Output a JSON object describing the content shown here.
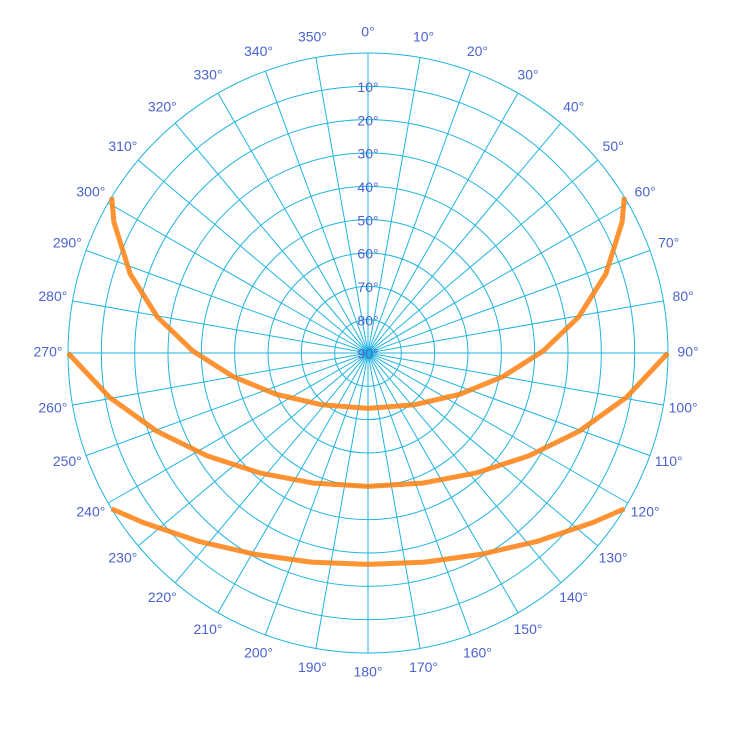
{
  "chart_data": {
    "type": "polar-line",
    "rlim": [
      90,
      0
    ],
    "rticks": [
      {
        "value": 10,
        "label": "10°"
      },
      {
        "value": 20,
        "label": "20°"
      },
      {
        "value": 30,
        "label": "30°"
      },
      {
        "value": 40,
        "label": "40°"
      },
      {
        "value": 50,
        "label": "50°"
      },
      {
        "value": 60,
        "label": "60°"
      },
      {
        "value": 70,
        "label": "70°"
      },
      {
        "value": 80,
        "label": "80°"
      },
      {
        "value": 90,
        "label": "90°"
      }
    ],
    "thetaticks": [
      {
        "value": 0,
        "label": "0°"
      },
      {
        "value": 10,
        "label": "10°"
      },
      {
        "value": 20,
        "label": "20°"
      },
      {
        "value": 30,
        "label": "30°"
      },
      {
        "value": 40,
        "label": "40°"
      },
      {
        "value": 50,
        "label": "50°"
      },
      {
        "value": 60,
        "label": "60°"
      },
      {
        "value": 70,
        "label": "70°"
      },
      {
        "value": 80,
        "label": "80°"
      },
      {
        "value": 90,
        "label": "90°"
      },
      {
        "value": 100,
        "label": "100°"
      },
      {
        "value": 110,
        "label": "110°"
      },
      {
        "value": 120,
        "label": "120°"
      },
      {
        "value": 130,
        "label": "130°"
      },
      {
        "value": 140,
        "label": "140°"
      },
      {
        "value": 150,
        "label": "150°"
      },
      {
        "value": 160,
        "label": "160°"
      },
      {
        "value": 170,
        "label": "170°"
      },
      {
        "value": 180,
        "label": "180°"
      },
      {
        "value": 190,
        "label": "190°"
      },
      {
        "value": 200,
        "label": "200°"
      },
      {
        "value": 210,
        "label": "210°"
      },
      {
        "value": 220,
        "label": "220°"
      },
      {
        "value": 230,
        "label": "230°"
      },
      {
        "value": 240,
        "label": "240°"
      },
      {
        "value": 250,
        "label": "250°"
      },
      {
        "value": 260,
        "label": "260°"
      },
      {
        "value": 270,
        "label": "270°"
      },
      {
        "value": 280,
        "label": "280°"
      },
      {
        "value": 290,
        "label": "290°"
      },
      {
        "value": 300,
        "label": "300°"
      },
      {
        "value": 310,
        "label": "310°"
      },
      {
        "value": 320,
        "label": "320°"
      },
      {
        "value": 330,
        "label": "330°"
      },
      {
        "value": 340,
        "label": "340°"
      },
      {
        "value": 350,
        "label": "350°"
      }
    ],
    "grid": true,
    "series": [
      {
        "color": "#ff7f0e",
        "theta": [
          58.7,
          62.7,
          71.6,
          80.3,
          89.3,
          99.8,
          114.2,
          138.3,
          180,
          221.7,
          245.8,
          260.2,
          270.7,
          279.7,
          288.4,
          297.3,
          301.3
        ],
        "r": [
          0,
          4.2,
          14.8,
          25.9,
          37.4,
          48.8,
          59.8,
          69.2,
          73.4,
          69.2,
          59.8,
          48.8,
          37.4,
          25.9,
          14.8,
          4.2,
          0
        ]
      },
      {
        "color": "#ff7f0e",
        "theta": [
          90,
          99.8,
          110.4,
          122.7,
          138.1,
          157.4,
          180,
          202.6,
          221.9,
          237.3,
          249.6,
          260.2,
          270
        ],
        "r": [
          0,
          11.4,
          22.5,
          32.8,
          41.6,
          47.7,
          50,
          47.7,
          41.6,
          32.8,
          22.5,
          11.4,
          0
        ]
      },
      {
        "color": "#ff7f0e",
        "theta": [
          121.3,
          127.0,
          138.0,
          150.6,
          164.8,
          180,
          195.2,
          209.4,
          222.0,
          233.0,
          238.7
        ],
        "r": [
          0,
          5.5,
          14.0,
          20.7,
          25.0,
          26.6,
          25.0,
          20.7,
          14.0,
          5.5,
          0
        ]
      }
    ]
  }
}
